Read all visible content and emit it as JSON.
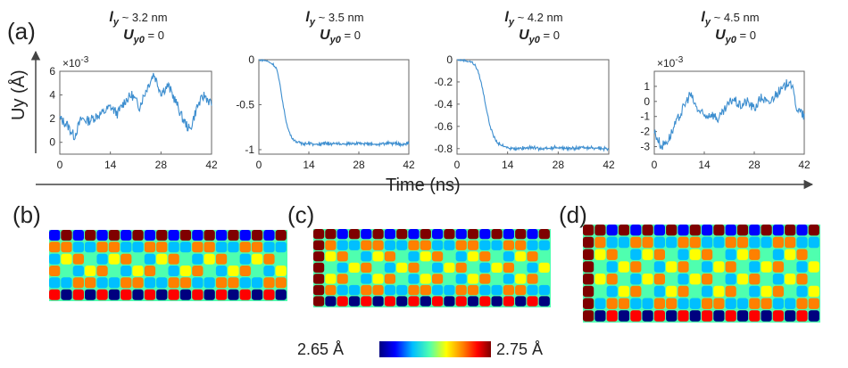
{
  "panel_labels": {
    "a": "(a)",
    "b": "(b)",
    "c": "(c)",
    "d": "(d)"
  },
  "axis": {
    "y_label": "Uy (Å)",
    "x_label": "Time (ns)"
  },
  "colorbar": {
    "min_label": "2.65 Å",
    "max_label": "2.75 Å",
    "colors": [
      "#00007f",
      "#0000ff",
      "#00bfff",
      "#4fffaf",
      "#ffff00",
      "#ff8000",
      "#ff0000",
      "#7f0000"
    ]
  },
  "line_color": "#3d8ecf",
  "chart_data": [
    {
      "type": "line",
      "title_line1_var": "l",
      "title_line1_sub": "y",
      "title_line1_rest": " ~ 3.2 nm",
      "title_line2": "U",
      "title_line2_sub": "y0",
      "title_line2_rest": " = 0",
      "exponent_label": "×10",
      "exponent_power": "-3",
      "xlim": [
        0,
        42
      ],
      "ylim": [
        -1,
        6
      ],
      "xticks": [
        "0",
        "14",
        "28",
        "42"
      ],
      "yticks": [
        "0",
        "2",
        "4",
        "6"
      ],
      "x": [
        0,
        2,
        4,
        6,
        8,
        10,
        12,
        14,
        16,
        18,
        20,
        22,
        24,
        26,
        28,
        30,
        32,
        34,
        36,
        38,
        40,
        42
      ],
      "y": [
        2,
        1.5,
        0.5,
        2,
        1.8,
        2.2,
        2.5,
        3,
        2.4,
        3.5,
        4,
        3,
        4.5,
        5.8,
        4.2,
        4.8,
        3.5,
        2,
        1,
        3,
        4,
        3.2
      ]
    },
    {
      "type": "line",
      "title_line1_var": "l",
      "title_line1_sub": "y",
      "title_line1_rest": " ~ 3.5 nm",
      "title_line2": "U",
      "title_line2_sub": "y0",
      "title_line2_rest": " = 0",
      "xlim": [
        0,
        42
      ],
      "ylim": [
        -1.05,
        0
      ],
      "xticks": [
        "0",
        "14",
        "28",
        "42"
      ],
      "yticks": [
        "0",
        "-0.5",
        "-1"
      ],
      "x": [
        0,
        2,
        4,
        5,
        6,
        7,
        8,
        9,
        10,
        11,
        12,
        14,
        16,
        20,
        24,
        28,
        32,
        36,
        40,
        42
      ],
      "y": [
        0,
        -0.01,
        -0.05,
        -0.1,
        -0.3,
        -0.55,
        -0.75,
        -0.85,
        -0.9,
        -0.92,
        -0.93,
        -0.93,
        -0.94,
        -0.93,
        -0.94,
        -0.93,
        -0.94,
        -0.93,
        -0.94,
        -0.93
      ]
    },
    {
      "type": "line",
      "title_line1_var": "l",
      "title_line1_sub": "y",
      "title_line1_rest": " ~ 4.2 nm",
      "title_line2": "U",
      "title_line2_sub": "y0",
      "title_line2_rest": " = 0",
      "xlim": [
        0,
        42
      ],
      "ylim": [
        -0.85,
        0
      ],
      "xticks": [
        "0",
        "14",
        "28",
        "42"
      ],
      "yticks": [
        "0",
        "-0.2",
        "-0.4",
        "-0.6",
        "-0.8"
      ],
      "x": [
        0,
        2,
        4,
        5,
        6,
        7,
        8,
        9,
        10,
        11,
        12,
        14,
        16,
        20,
        24,
        28,
        32,
        36,
        40,
        42
      ],
      "y": [
        0,
        -0.005,
        -0.02,
        -0.05,
        -0.12,
        -0.25,
        -0.42,
        -0.58,
        -0.68,
        -0.74,
        -0.77,
        -0.79,
        -0.8,
        -0.79,
        -0.8,
        -0.79,
        -0.8,
        -0.79,
        -0.8,
        -0.8
      ]
    },
    {
      "type": "line",
      "title_line1_var": "l",
      "title_line1_sub": "y",
      "title_line1_rest": " ~ 4.5 nm",
      "title_line2": "U",
      "title_line2_sub": "y0",
      "title_line2_rest": " = 0",
      "exponent_label": "×10",
      "exponent_power": "-3",
      "xlim": [
        0,
        42
      ],
      "ylim": [
        -3.5,
        2
      ],
      "xticks": [
        "0",
        "14",
        "28",
        "42"
      ],
      "yticks": [
        "1",
        "0",
        "-1",
        "-2",
        "-3"
      ],
      "x": [
        0,
        2,
        4,
        6,
        8,
        10,
        12,
        14,
        16,
        18,
        20,
        22,
        24,
        26,
        28,
        30,
        32,
        34,
        36,
        38,
        40,
        42
      ],
      "y": [
        -2,
        -3,
        -2.5,
        -1.5,
        -0.5,
        0.5,
        -0.5,
        -1,
        -0.8,
        -1.2,
        -0.5,
        0.2,
        -0.3,
        0,
        -0.5,
        0.3,
        -0.2,
        0.5,
        0.8,
        1.5,
        -0.5,
        -1
      ]
    }
  ]
}
